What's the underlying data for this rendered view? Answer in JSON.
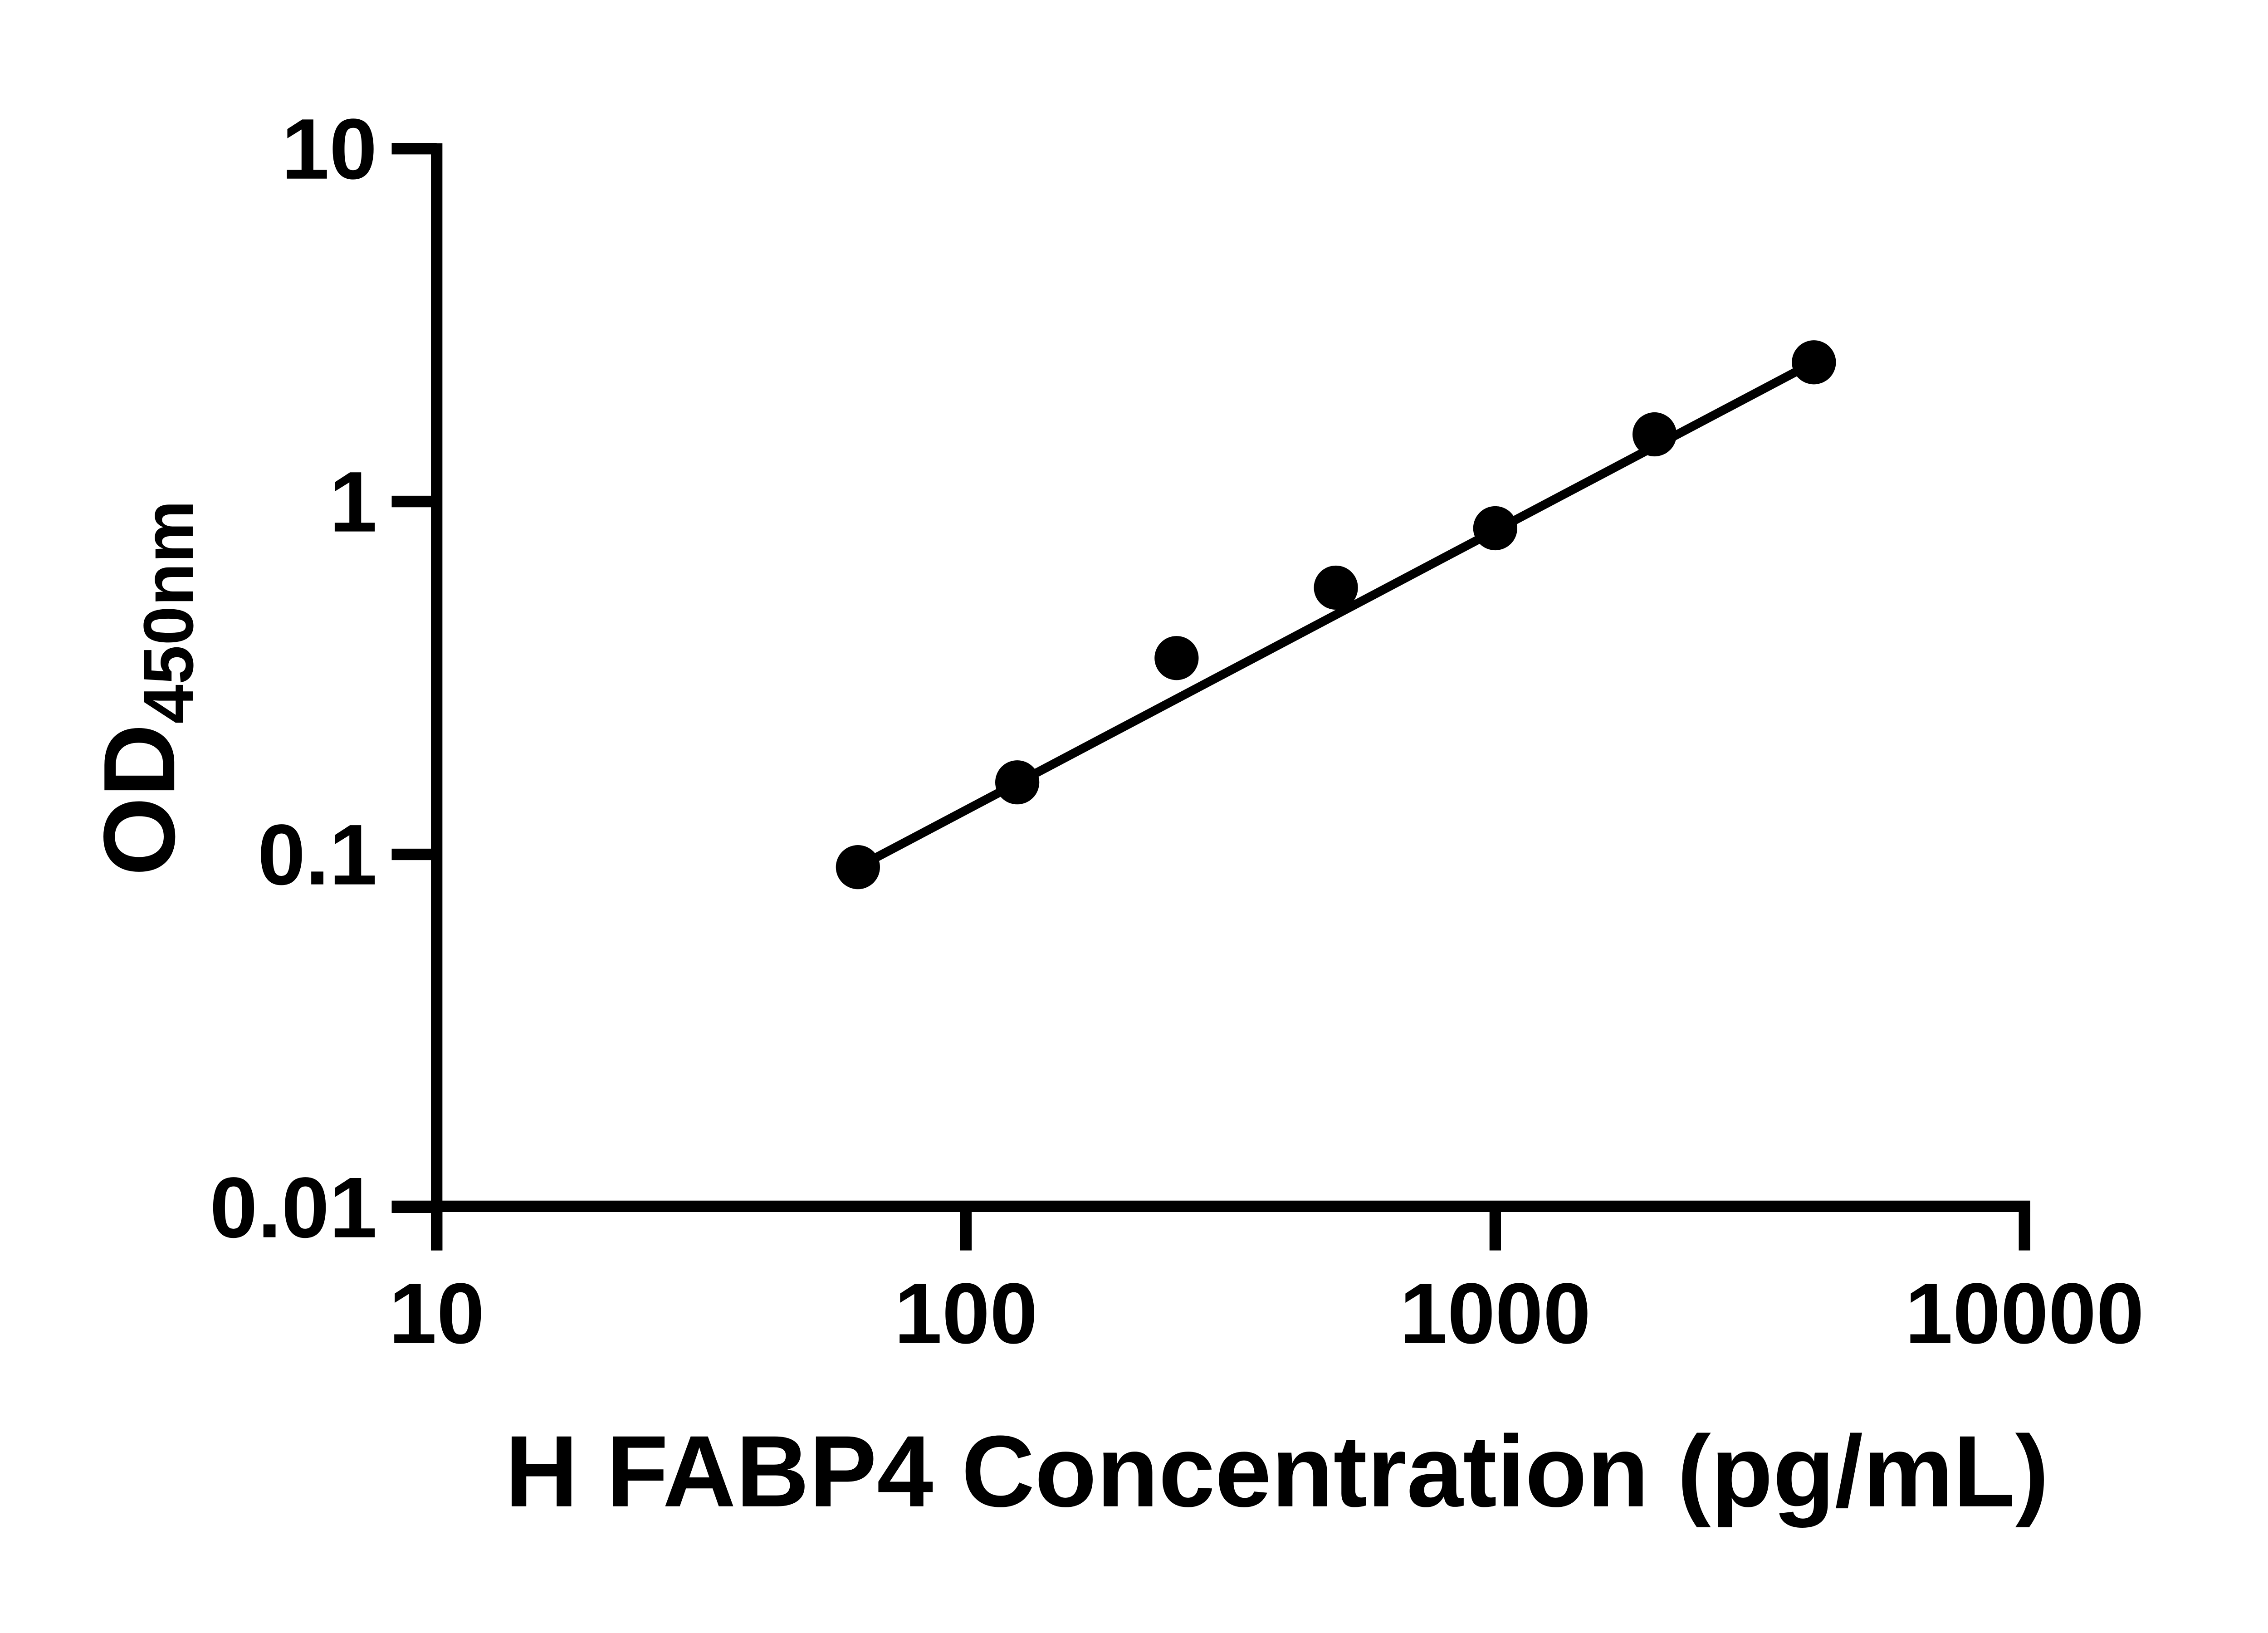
{
  "page": {
    "background_color": "#ffffff",
    "foreground_color": "#000000"
  },
  "chart_data": {
    "type": "scatter",
    "title": "",
    "xlabel": "H FABP4 Concentration (pg/mL)",
    "ylabel_main": "OD",
    "ylabel_sub": "450nm",
    "xscale": "log",
    "yscale": "log",
    "xlim": [
      10,
      10000
    ],
    "ylim": [
      0.01,
      10
    ],
    "grid": false,
    "legend_position": "none",
    "axis_color": "#000000",
    "marker_color": "#000000",
    "line_color": "#000000",
    "x_ticks": [
      {
        "value": 10,
        "label": "10"
      },
      {
        "value": 100,
        "label": "100"
      },
      {
        "value": 1000,
        "label": "1000"
      },
      {
        "value": 10000,
        "label": "10000"
      }
    ],
    "y_ticks": [
      {
        "value": 10,
        "label": "10"
      },
      {
        "value": 1,
        "label": "1"
      },
      {
        "value": 0.1,
        "label": "0.1"
      },
      {
        "value": 0.01,
        "label": "0.01"
      }
    ],
    "series": [
      {
        "name": "standard-curve-points",
        "marker": "filled-circle",
        "points": [
          {
            "x": 62.5,
            "y": 0.092
          },
          {
            "x": 125,
            "y": 0.16
          },
          {
            "x": 250,
            "y": 0.36
          },
          {
            "x": 500,
            "y": 0.57
          },
          {
            "x": 1000,
            "y": 0.84
          },
          {
            "x": 2000,
            "y": 1.55
          },
          {
            "x": 4000,
            "y": 2.48
          }
        ]
      }
    ],
    "trend_line": {
      "x1": 62.5,
      "y1": 0.092,
      "x2": 4000,
      "y2": 2.48
    }
  }
}
